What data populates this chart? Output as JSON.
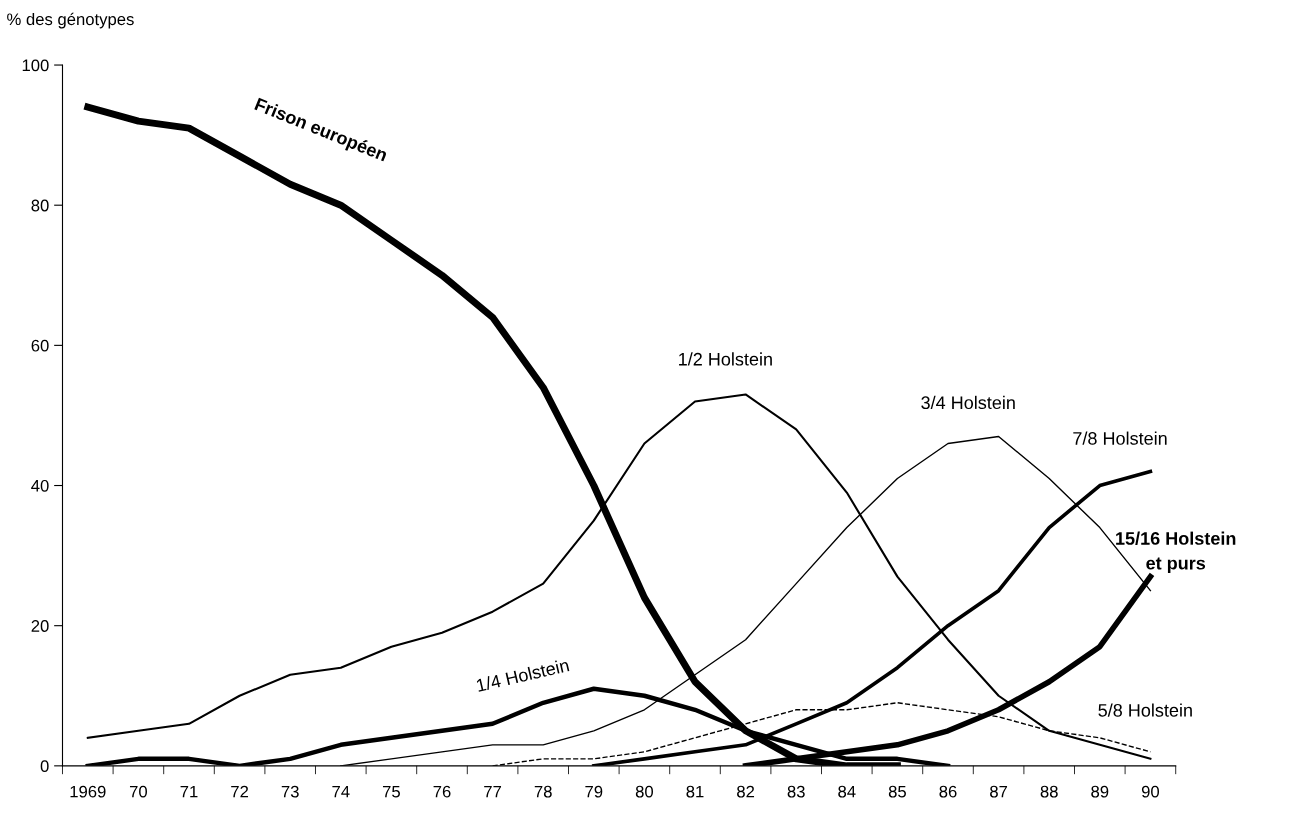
{
  "chart_data": {
    "type": "line",
    "ylabel": "% des génotypes",
    "categories": [
      "1969",
      "70",
      "71",
      "72",
      "73",
      "74",
      "75",
      "76",
      "77",
      "78",
      "79",
      "80",
      "81",
      "82",
      "83",
      "84",
      "85",
      "86",
      "87",
      "88",
      "89",
      "90"
    ],
    "ylim": [
      0,
      100
    ],
    "yticks": [
      0,
      20,
      40,
      60,
      80,
      100
    ],
    "grid": false,
    "legend": false,
    "marker": "none",
    "series": [
      {
        "name": "Frison européen",
        "color": "#000000",
        "line_style": "solid",
        "values": [
          94,
          92,
          91,
          87,
          83,
          80,
          75,
          70,
          64,
          54,
          40,
          24,
          12,
          5,
          1,
          0,
          0,
          null,
          null,
          null,
          null,
          null
        ]
      },
      {
        "name": "1/2 Holstein",
        "color": "#000000",
        "line_style": "solid",
        "values": [
          4,
          5,
          6,
          10,
          13,
          14,
          17,
          19,
          22,
          26,
          35,
          46,
          52,
          53,
          48,
          39,
          27,
          18,
          10,
          5,
          3,
          1
        ]
      },
      {
        "name": "1/4 Holstein",
        "color": "#000000",
        "line_style": "solid",
        "values": [
          0,
          1,
          1,
          0,
          1,
          3,
          4,
          5,
          6,
          9,
          11,
          10,
          8,
          5,
          3,
          1,
          1,
          0,
          null,
          null,
          null,
          null
        ]
      },
      {
        "name": "3/4 Holstein",
        "color": "#000000",
        "line_style": "solid",
        "values": [
          null,
          null,
          null,
          null,
          null,
          0,
          1,
          2,
          3,
          3,
          5,
          8,
          13,
          18,
          26,
          34,
          41,
          46,
          47,
          41,
          34,
          25
        ]
      },
      {
        "name": "5/8 Holstein",
        "color": "#000000",
        "line_style": "dashed",
        "values": [
          null,
          null,
          null,
          null,
          null,
          null,
          null,
          null,
          0,
          1,
          1,
          2,
          4,
          6,
          8,
          8,
          9,
          8,
          7,
          5,
          4,
          2
        ]
      },
      {
        "name": "7/8 Holstein",
        "color": "#000000",
        "line_style": "solid",
        "values": [
          null,
          null,
          null,
          null,
          null,
          null,
          null,
          null,
          null,
          null,
          0,
          1,
          2,
          3,
          6,
          9,
          14,
          20,
          25,
          34,
          40,
          42
        ]
      },
      {
        "name": "15/16 Holstein\net purs",
        "color": "#000000",
        "line_style": "solid",
        "values": [
          null,
          null,
          null,
          null,
          null,
          null,
          null,
          null,
          null,
          null,
          null,
          null,
          null,
          0,
          1,
          2,
          3,
          5,
          8,
          12,
          17,
          27
        ]
      }
    ]
  }
}
